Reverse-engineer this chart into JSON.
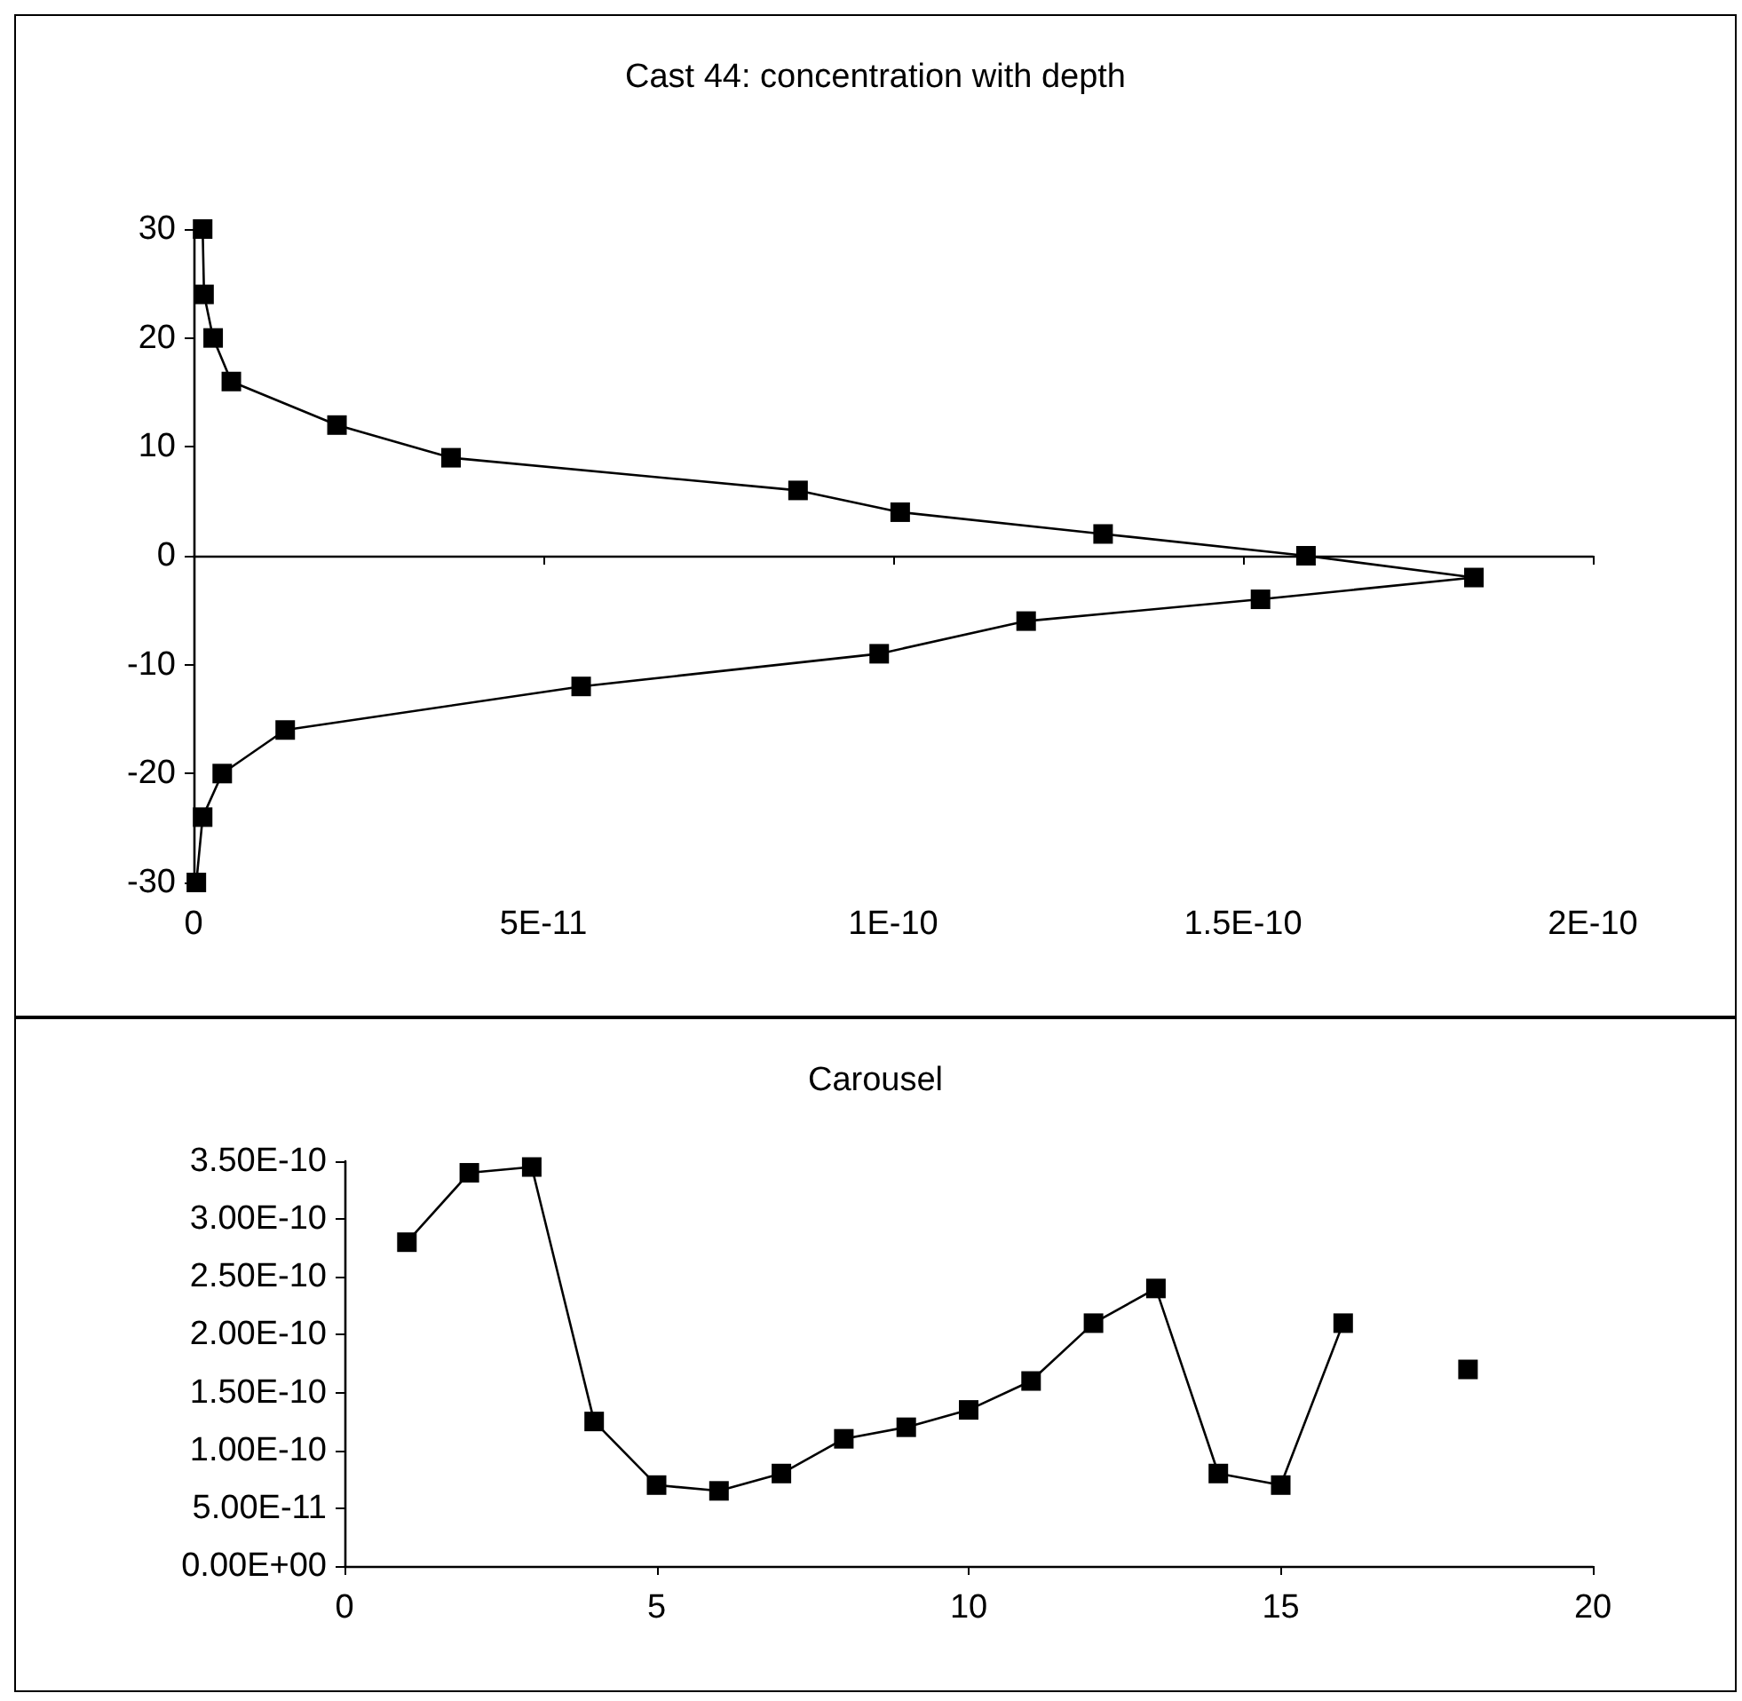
{
  "chart_data": [
    {
      "type": "line",
      "title": "Cast 44: concentration with depth",
      "marker": "square",
      "line_style": "solid",
      "xlim": [
        0,
        2e-10
      ],
      "xticks": [
        0,
        {
          "value": 5e-11,
          "label": "5E-11"
        },
        {
          "value": 1e-10,
          "label": "1E-10"
        },
        {
          "value": 1.5e-10,
          "label": "1.5E-10"
        },
        {
          "value": 2e-10,
          "label": "2E-10"
        }
      ],
      "ylim": [
        -30,
        30
      ],
      "yticks": [
        -30,
        -20,
        -10,
        0,
        10,
        20,
        30
      ],
      "x": [
        1.3e-12,
        1.5e-12,
        2.8e-12,
        5.4e-12,
        2.05e-11,
        3.68e-11,
        8.64e-11,
        1.01e-10,
        1.3e-10,
        1.59e-10,
        1.83e-10,
        1.525e-10,
        1.19e-10,
        9.8e-11,
        5.54e-11,
        1.31e-11,
        4.1e-12,
        1.3e-12,
        4e-13
      ],
      "series": [
        {
          "color": "#000000",
          "values": [
            30,
            24,
            20,
            16,
            12,
            9,
            6,
            4,
            2,
            0,
            -2,
            -4,
            -6,
            -9,
            -12,
            -16,
            -20,
            -24,
            -30
          ]
        }
      ]
    },
    {
      "type": "line",
      "title": "Carousel",
      "marker": "square",
      "line_style": "solid",
      "xlim": [
        0,
        20
      ],
      "xticks": [
        0,
        5,
        10,
        15,
        20
      ],
      "ylim": [
        0,
        3.5e-10
      ],
      "yticks": [
        {
          "value": 0,
          "label": "0.00E+00"
        },
        {
          "value": 5e-11,
          "label": "5.00E-11"
        },
        {
          "value": 1e-10,
          "label": "1.00E-10"
        },
        {
          "value": 1.5e-10,
          "label": "1.50E-10"
        },
        {
          "value": 2e-10,
          "label": "2.00E-10"
        },
        {
          "value": 2.5e-10,
          "label": "2.50E-10"
        },
        {
          "value": 3e-10,
          "label": "3.00E-10"
        },
        {
          "value": 3.5e-10,
          "label": "3.50E-10"
        }
      ],
      "x": [
        1,
        2,
        3,
        4,
        5,
        6,
        7,
        8,
        9,
        10,
        11,
        12,
        13,
        14,
        15,
        16,
        17,
        18
      ],
      "series": [
        {
          "color": "#000000",
          "values": [
            2.8e-10,
            3.4e-10,
            3.45e-10,
            1.25e-10,
            7e-11,
            6.5e-11,
            8e-11,
            1.1e-10,
            1.2e-10,
            1.35e-10,
            1.6e-10,
            2.1e-10,
            2.4e-10,
            8e-11,
            7e-11,
            2.1e-10,
            null,
            1.7e-10
          ]
        }
      ]
    }
  ]
}
